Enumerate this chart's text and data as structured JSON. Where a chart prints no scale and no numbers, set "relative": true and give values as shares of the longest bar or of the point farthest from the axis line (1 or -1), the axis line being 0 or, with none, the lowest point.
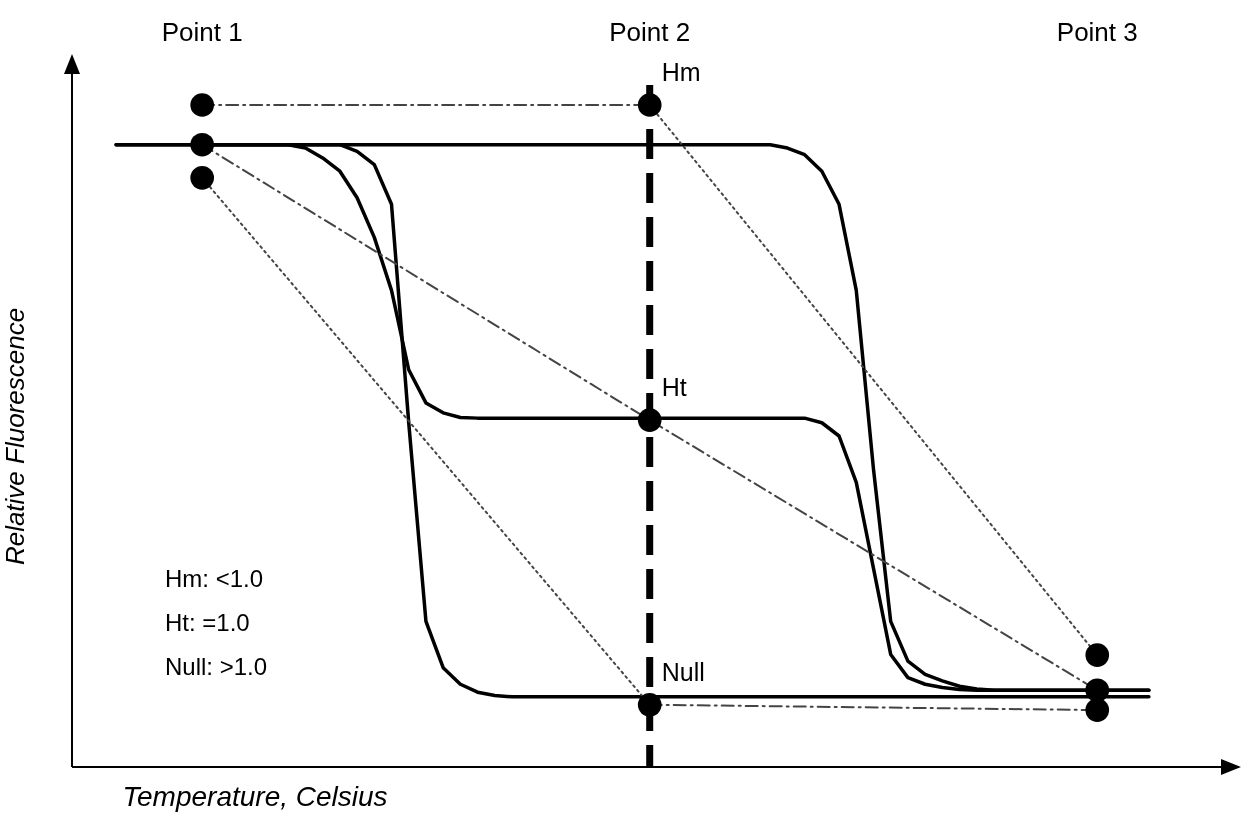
{
  "chart_data": {
    "type": "line",
    "xlabel": "Temperature, Celsius",
    "ylabel": "Relative Fluorescence",
    "relative": true,
    "categories": [
      null,
      null,
      null,
      null,
      null,
      "Point 1",
      null,
      null,
      null,
      null,
      null,
      null,
      null,
      null,
      null,
      null,
      null,
      null,
      null,
      null,
      null,
      null,
      null,
      null,
      null,
      null,
      null,
      null,
      null,
      null,
      null,
      "Point 2",
      null,
      null,
      null,
      null,
      null,
      null,
      null,
      null,
      null,
      null,
      null,
      null,
      null,
      null,
      null,
      null,
      null,
      null,
      null,
      null,
      null,
      null,
      null,
      null,
      null,
      "Point 3",
      null,
      null,
      null
    ],
    "series": [
      {
        "color": "#000000",
        "line_style": "solid",
        "values": [
          0.94,
          0.94,
          0.94,
          0.94,
          0.94,
          0.94,
          0.94,
          0.94,
          0.94,
          0.94,
          0.94,
          0.94,
          0.94,
          0.94,
          0.93,
          0.91,
          0.85,
          0.52,
          0.22,
          0.15,
          0.125,
          0.113,
          0.108,
          0.106,
          0.106,
          0.106,
          0.106,
          0.106,
          0.106,
          0.106,
          0.106,
          0.106,
          0.106,
          0.106,
          0.106,
          0.106,
          0.106,
          0.106,
          0.106,
          0.106,
          0.106,
          0.106,
          0.106,
          0.106,
          0.106,
          0.106,
          0.106,
          0.106,
          0.106,
          0.106,
          0.106,
          0.106,
          0.106,
          0.106,
          0.106,
          0.106,
          0.106,
          0.106,
          0.106,
          0.106,
          0.106
        ]
      },
      {
        "color": "#000000",
        "line_style": "solid",
        "values": [
          0.94,
          0.94,
          0.94,
          0.94,
          0.94,
          0.94,
          0.94,
          0.94,
          0.94,
          0.94,
          0.94,
          0.935,
          0.92,
          0.9,
          0.86,
          0.8,
          0.72,
          0.6,
          0.55,
          0.535,
          0.528,
          0.527,
          0.527,
          0.527,
          0.527,
          0.527,
          0.527,
          0.527,
          0.527,
          0.527,
          0.527,
          0.527,
          0.527,
          0.527,
          0.527,
          0.527,
          0.527,
          0.527,
          0.527,
          0.527,
          0.527,
          0.52,
          0.5,
          0.43,
          0.3,
          0.17,
          0.135,
          0.125,
          0.12,
          0.117,
          0.116,
          0.116,
          0.116,
          0.116,
          0.116,
          0.116,
          0.116,
          0.116,
          0.116,
          0.116,
          0.116
        ]
      },
      {
        "color": "#000000",
        "line_style": "solid",
        "values": [
          null,
          null,
          null,
          null,
          null,
          0.94,
          0.94,
          0.94,
          0.94,
          0.94,
          0.94,
          0.94,
          0.94,
          0.94,
          0.94,
          0.94,
          0.94,
          0.94,
          0.94,
          0.94,
          0.94,
          0.94,
          0.94,
          0.94,
          0.94,
          0.94,
          0.94,
          0.94,
          0.94,
          0.94,
          0.94,
          0.94,
          0.94,
          0.94,
          0.94,
          0.94,
          0.94,
          0.94,
          0.94,
          0.935,
          0.925,
          0.9,
          0.85,
          0.72,
          0.45,
          0.22,
          0.16,
          0.14,
          0.13,
          0.122,
          0.118,
          0.116,
          0.116,
          0.116,
          0.116,
          0.116,
          0.116,
          0.116,
          0.116,
          0.116,
          0.116
        ]
      },
      {
        "color": "#444444",
        "line_style": "dashed",
        "x": [
          "Point 1",
          "Point 2"
        ],
        "values": [
          1.0,
          1.0
        ]
      },
      {
        "color": "#444444",
        "line_style": "dotted",
        "x": [
          "Point 2",
          "Point 3"
        ],
        "values": [
          1.0,
          0.169
        ]
      },
      {
        "color": "#444444",
        "line_style": "dashed",
        "x": [
          "Point 1",
          "Point 2",
          "Point 3"
        ],
        "values": [
          0.94,
          0.524,
          0.116
        ]
      },
      {
        "color": "#444444",
        "line_style": "dotted",
        "x": [
          "Point 1",
          "Point 2"
        ],
        "values": [
          0.89,
          0.094
        ]
      },
      {
        "color": "#444444",
        "line_style": "dashed",
        "x": [
          "Point 2",
          "Point 3"
        ],
        "values": [
          0.094,
          0.086
        ]
      },
      {
        "type": "scatter",
        "marker": "circle",
        "color": "#000000",
        "x": [
          "Point 1",
          "Point 1",
          "Point 1",
          "Point 2",
          "Point 2",
          "Point 2",
          "Point 3",
          "Point 3",
          "Point 3"
        ],
        "values": [
          1.0,
          0.94,
          0.89,
          1.0,
          0.524,
          0.094,
          0.169,
          0.116,
          0.086
        ]
      }
    ],
    "ref_lines": [
      {
        "axis": "x",
        "value": "Point 2",
        "line_style": "dashed",
        "color": "#000000"
      }
    ],
    "annotations": [
      {
        "text": "Hm",
        "x": "Point 2",
        "y": 1.0
      },
      {
        "text": "Ht",
        "x": "Point 2",
        "y": 0.524
      },
      {
        "text": "Null",
        "x": "Point 2",
        "y": 0.094
      },
      "Hm: <1.0",
      "Ht: =1.0",
      "Null: >1.0"
    ]
  }
}
